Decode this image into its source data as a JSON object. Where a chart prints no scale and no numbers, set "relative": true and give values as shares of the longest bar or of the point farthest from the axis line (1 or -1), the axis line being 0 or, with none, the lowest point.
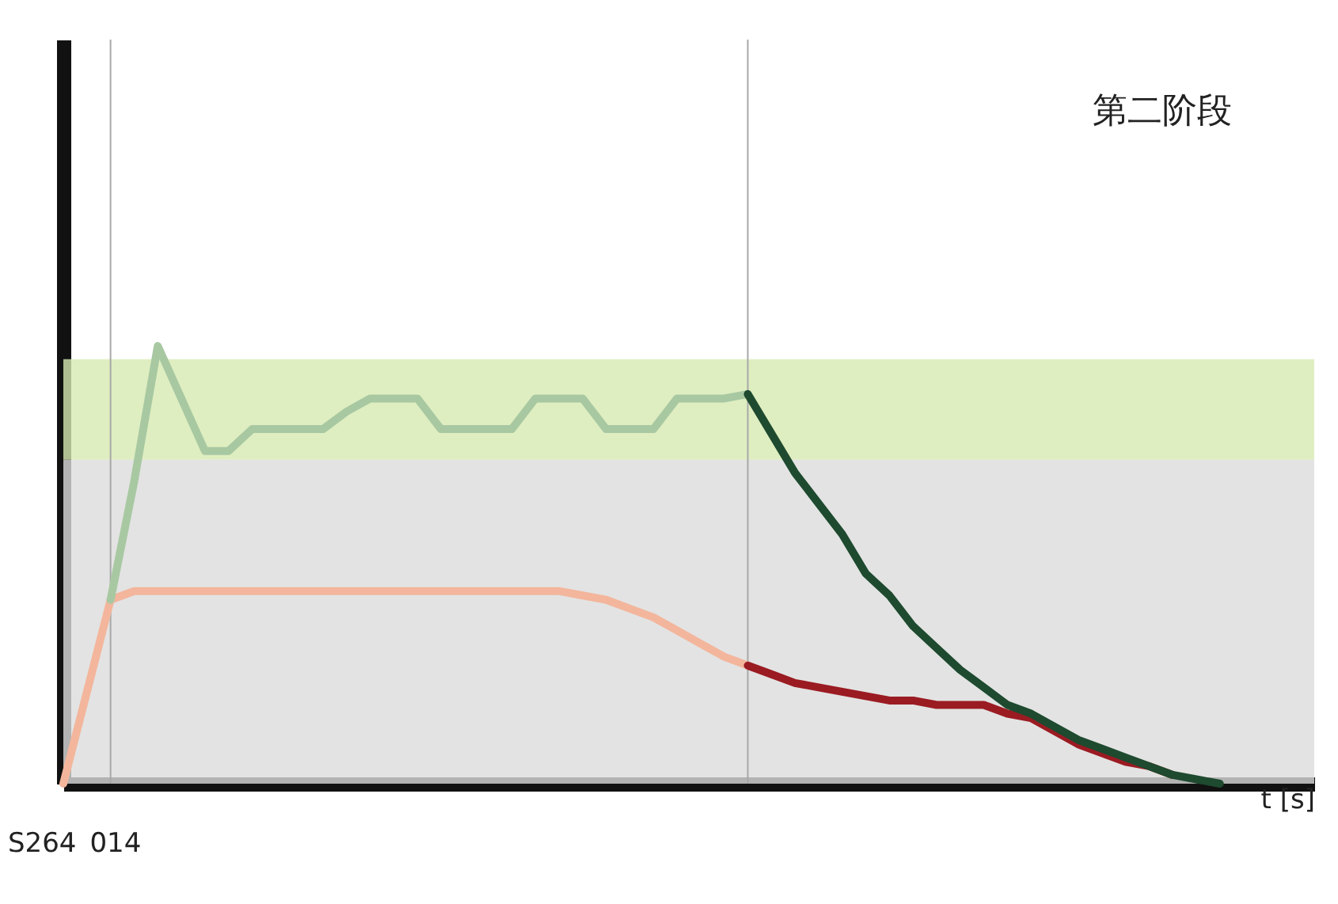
{
  "chart_data": {
    "type": "line",
    "relative": true,
    "xlabel": "t [s]",
    "tick_labels": false,
    "grid": false,
    "marker": "none",
    "line_style": "solid",
    "categories": [
      null,
      null,
      null,
      null,
      null,
      null,
      null,
      null,
      null,
      null,
      null,
      null,
      null,
      null,
      null,
      null,
      null,
      null,
      null,
      null,
      null,
      null,
      null,
      null,
      null,
      null,
      null,
      null,
      null,
      null,
      null,
      null,
      null,
      null,
      null,
      null,
      null,
      null,
      null,
      null,
      null,
      null,
      null,
      null,
      null,
      null,
      null,
      null,
      null,
      null,
      null,
      null,
      null,
      null
    ],
    "series": [
      {
        "color": "#f3b69c",
        "values": [
          0,
          0.21,
          0.42,
          0.44,
          0.44,
          0.44,
          0.44,
          0.44,
          0.44,
          0.44,
          0.44,
          0.44,
          0.44,
          0.44,
          0.44,
          0.44,
          0.44,
          0.44,
          0.44,
          0.44,
          0.44,
          0.44,
          0.43,
          0.42,
          0.4,
          0.38,
          0.35,
          0.32,
          0.29,
          0.27,
          null,
          null,
          null,
          null,
          null,
          null,
          null,
          null,
          null,
          null,
          null,
          null,
          null,
          null,
          null,
          null,
          null,
          null,
          null,
          null,
          null,
          null,
          null,
          null
        ]
      },
      {
        "color": "#9b1b22",
        "values": [
          null,
          null,
          null,
          null,
          null,
          null,
          null,
          null,
          null,
          null,
          null,
          null,
          null,
          null,
          null,
          null,
          null,
          null,
          null,
          null,
          null,
          null,
          null,
          null,
          null,
          null,
          null,
          null,
          null,
          0.27,
          0.25,
          0.23,
          0.22,
          0.21,
          0.2,
          0.19,
          0.19,
          0.18,
          0.18,
          0.18,
          0.16,
          0.15,
          0.12,
          0.09,
          0.07,
          0.05,
          0.04,
          0.02,
          null,
          null,
          null,
          null,
          null,
          null
        ]
      },
      {
        "color": "#a8c8a2",
        "values": [
          null,
          null,
          0.42,
          0.69,
          1,
          0.88,
          0.76,
          0.76,
          0.81,
          0.81,
          0.81,
          0.81,
          0.85,
          0.88,
          0.88,
          0.88,
          0.81,
          0.81,
          0.81,
          0.81,
          0.88,
          0.88,
          0.88,
          0.81,
          0.81,
          0.81,
          0.88,
          0.88,
          0.88,
          0.89,
          null,
          null,
          null,
          null,
          null,
          null,
          null,
          null,
          null,
          null,
          null,
          null,
          null,
          null,
          null,
          null,
          null,
          null,
          null,
          null,
          null,
          null,
          null,
          null
        ]
      },
      {
        "color": "#1e4a2f",
        "values": [
          null,
          null,
          null,
          null,
          null,
          null,
          null,
          null,
          null,
          null,
          null,
          null,
          null,
          null,
          null,
          null,
          null,
          null,
          null,
          null,
          null,
          null,
          null,
          null,
          null,
          null,
          null,
          null,
          null,
          0.89,
          0.8,
          0.71,
          0.64,
          0.57,
          0.48,
          0.43,
          0.36,
          0.31,
          0.26,
          0.22,
          0.18,
          0.16,
          0.13,
          0.1,
          0.08,
          0.06,
          0.04,
          0.02,
          0.01,
          0,
          null,
          null,
          null,
          null
        ]
      }
    ],
    "bands": [
      {
        "axis": "y",
        "from": 0.74,
        "to": 0.97,
        "color": "#d6eab0"
      },
      {
        "axis": "y",
        "from": 0,
        "to": 0.74,
        "color": "#dcdcdc"
      }
    ],
    "annotations": [
      "第二阶段",
      "S264_014"
    ]
  }
}
